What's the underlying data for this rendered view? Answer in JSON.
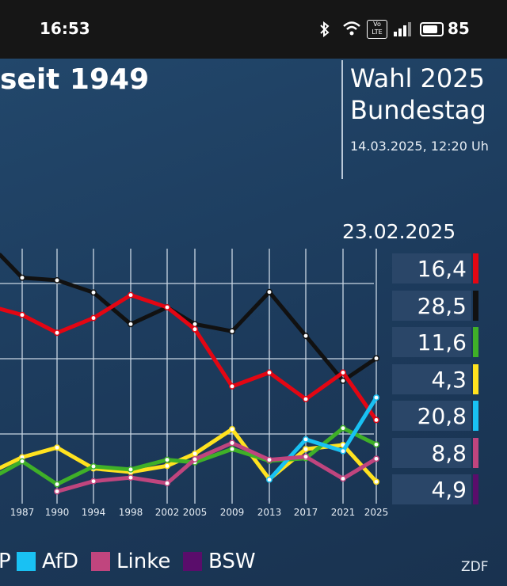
{
  "status_bar": {
    "time": "16:53",
    "battery": "85",
    "volte_label": "Vo LTE",
    "icons": [
      "bluetooth-icon",
      "wifi-icon",
      "volte-icon",
      "signal-icon",
      "battery-icon"
    ]
  },
  "header": {
    "title": "seit 1949",
    "election": "Wahl 2025",
    "body": "Bundestag",
    "timestamp": "14.03.2025, 12:20 Uh"
  },
  "results": {
    "date": "23.02.2025",
    "items": [
      {
        "value": "16,4",
        "color": "#e30613"
      },
      {
        "value": "28,5",
        "color": "#111111"
      },
      {
        "value": "11,6",
        "color": "#3fb028"
      },
      {
        "value": "4,3",
        "color": "#ffe21f"
      },
      {
        "value": "20,8",
        "color": "#19c1f3"
      },
      {
        "value": "8,8",
        "color": "#c0457e"
      },
      {
        "value": "4,9",
        "color": "#5a0d6b"
      }
    ]
  },
  "legend": [
    {
      "label": "P",
      "color": null
    },
    {
      "label": "AfD",
      "color": "#19c1f3"
    },
    {
      "label": "Linke",
      "color": "#c0457e"
    },
    {
      "label": "BSW",
      "color": "#5a0d6b"
    }
  ],
  "brand": "ZDF",
  "chart_data": {
    "type": "line",
    "x": [
      "1987",
      "1990",
      "1994",
      "1998",
      "2002",
      "2005",
      "2009",
      "2013",
      "2017",
      "2021",
      "2025"
    ],
    "ylim": [
      0,
      50
    ],
    "grid": true,
    "series": [
      {
        "color": "#111111",
        "values": [
          44.3,
          43.8,
          41.4,
          35.2,
          38.5,
          35.2,
          33.8,
          41.5,
          32.9,
          24.1,
          28.5
        ],
        "lead": 48.8
      },
      {
        "color": "#e30613",
        "values": [
          37.0,
          33.5,
          36.4,
          40.9,
          38.5,
          34.2,
          23.0,
          25.7,
          20.5,
          25.7,
          16.4
        ],
        "lead": 38.2
      },
      {
        "color": "#ffe21f",
        "values": [
          9.1,
          11.0,
          6.9,
          6.2,
          7.4,
          9.8,
          14.6,
          4.8,
          10.7,
          11.5,
          4.3
        ],
        "lead": 7.0
      },
      {
        "color": "#3fb028",
        "values": [
          8.3,
          3.8,
          7.3,
          6.7,
          8.6,
          8.1,
          10.7,
          8.4,
          8.9,
          14.8,
          11.6
        ],
        "lead": 5.9
      },
      {
        "color": "#19c1f3",
        "values": [
          null,
          null,
          null,
          null,
          null,
          null,
          null,
          4.7,
          12.6,
          10.3,
          20.8
        ]
      },
      {
        "color": "#c0457e",
        "values": [
          null,
          2.4,
          4.4,
          5.1,
          4.0,
          8.7,
          11.9,
          8.6,
          9.2,
          4.9,
          8.8
        ]
      }
    ]
  }
}
